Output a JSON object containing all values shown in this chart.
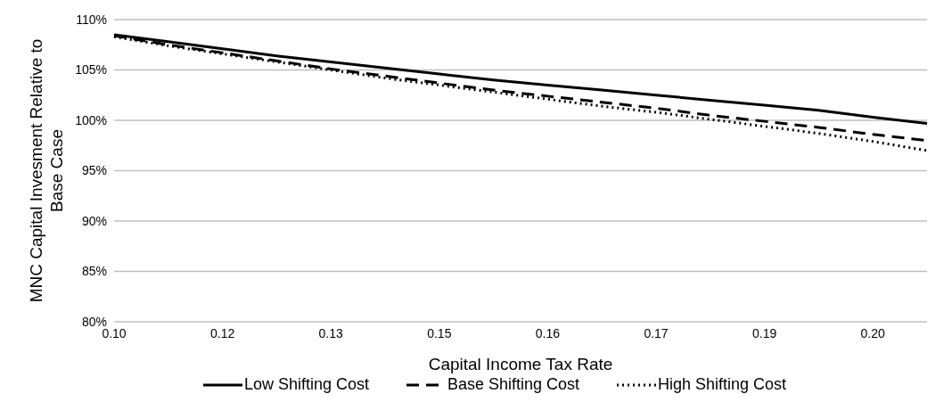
{
  "chart_data": {
    "type": "line",
    "xlabel": "Capital Income Tax Rate",
    "ylabel": "MNC Capital Invesment Relative to Base Case",
    "categories": [
      "0.10",
      null,
      "0.12",
      null,
      "0.13",
      null,
      "0.15",
      null,
      "0.16",
      null,
      "0.17",
      null,
      "0.19",
      null,
      "0.20",
      null
    ],
    "series": [
      {
        "name": "Low Shifting Cost",
        "color": "#000000",
        "line_style": "solid",
        "values": [
          108.5,
          107.8,
          107.1,
          106.4,
          105.8,
          105.2,
          104.6,
          104.0,
          103.5,
          103.0,
          102.5,
          102.0,
          101.5,
          101.0,
          100.3,
          99.7
        ]
      },
      {
        "name": "Base Shifting Cost",
        "color": "#000000",
        "line_style": "dashed",
        "values": [
          108.4,
          107.5,
          106.7,
          105.9,
          105.1,
          104.4,
          103.7,
          103.0,
          102.4,
          101.8,
          101.2,
          100.5,
          99.9,
          99.3,
          98.6,
          98.0
        ]
      },
      {
        "name": "High Shifting Cost",
        "color": "#000000",
        "line_style": "dotted",
        "values": [
          108.3,
          107.4,
          106.6,
          105.8,
          105.0,
          104.2,
          103.5,
          102.8,
          102.1,
          101.4,
          100.8,
          100.1,
          99.4,
          98.7,
          97.9,
          97.0
        ]
      }
    ],
    "ylim": [
      80,
      110
    ],
    "yticks": [
      {
        "value": 80,
        "label": "80%"
      },
      {
        "value": 85,
        "label": "85%"
      },
      {
        "value": 90,
        "label": "90%"
      },
      {
        "value": 95,
        "label": "95%"
      },
      {
        "value": 100,
        "label": "100%"
      },
      {
        "value": 105,
        "label": "105%"
      },
      {
        "value": 110,
        "label": "110%"
      }
    ],
    "grid": "y",
    "legend": "bottom",
    "marker": "none"
  }
}
